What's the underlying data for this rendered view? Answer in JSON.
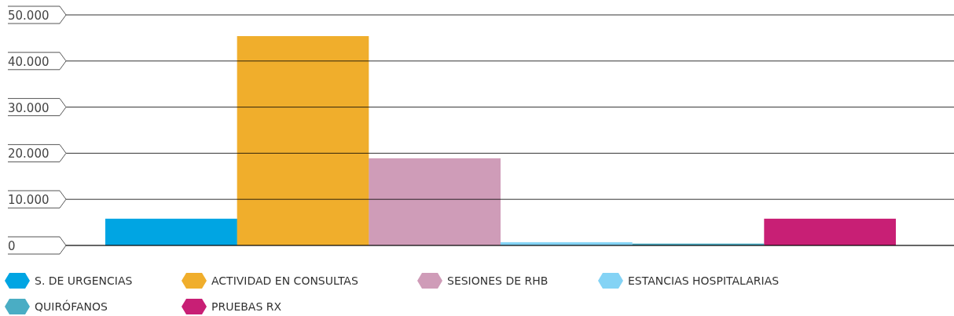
{
  "chart_data": {
    "type": "bar",
    "categories": [
      null
    ],
    "series": [
      {
        "name": "S. DE URGENCIAS",
        "color": "#00a5e3",
        "values": [
          5800
        ]
      },
      {
        "name": "ACTIVIDAD EN CONSULTAS",
        "color": "#f0ae2c",
        "values": [
          45400
        ]
      },
      {
        "name": "SESIONES DE RHB",
        "color": "#cf9cb8",
        "values": [
          18900
        ]
      },
      {
        "name": "ESTANCIAS HOSPITALARIAS",
        "color": "#84d3f5",
        "values": [
          700
        ]
      },
      {
        "name": "QUIRÓFANOS",
        "color": "#4aadc4",
        "values": [
          400
        ]
      },
      {
        "name": "PRUEBAS RX",
        "color": "#c81f75",
        "values": [
          5800
        ]
      }
    ],
    "ylim": [
      0,
      50000
    ],
    "yticks": [
      {
        "value": 0,
        "label": "0"
      },
      {
        "value": 10000,
        "label": "10.000"
      },
      {
        "value": 20000,
        "label": "20.000"
      },
      {
        "value": 30000,
        "label": "30.000"
      },
      {
        "value": 40000,
        "label": "40.000"
      },
      {
        "value": 50000,
        "label": "50.000"
      }
    ],
    "grid": "y",
    "legend": "bottom"
  }
}
